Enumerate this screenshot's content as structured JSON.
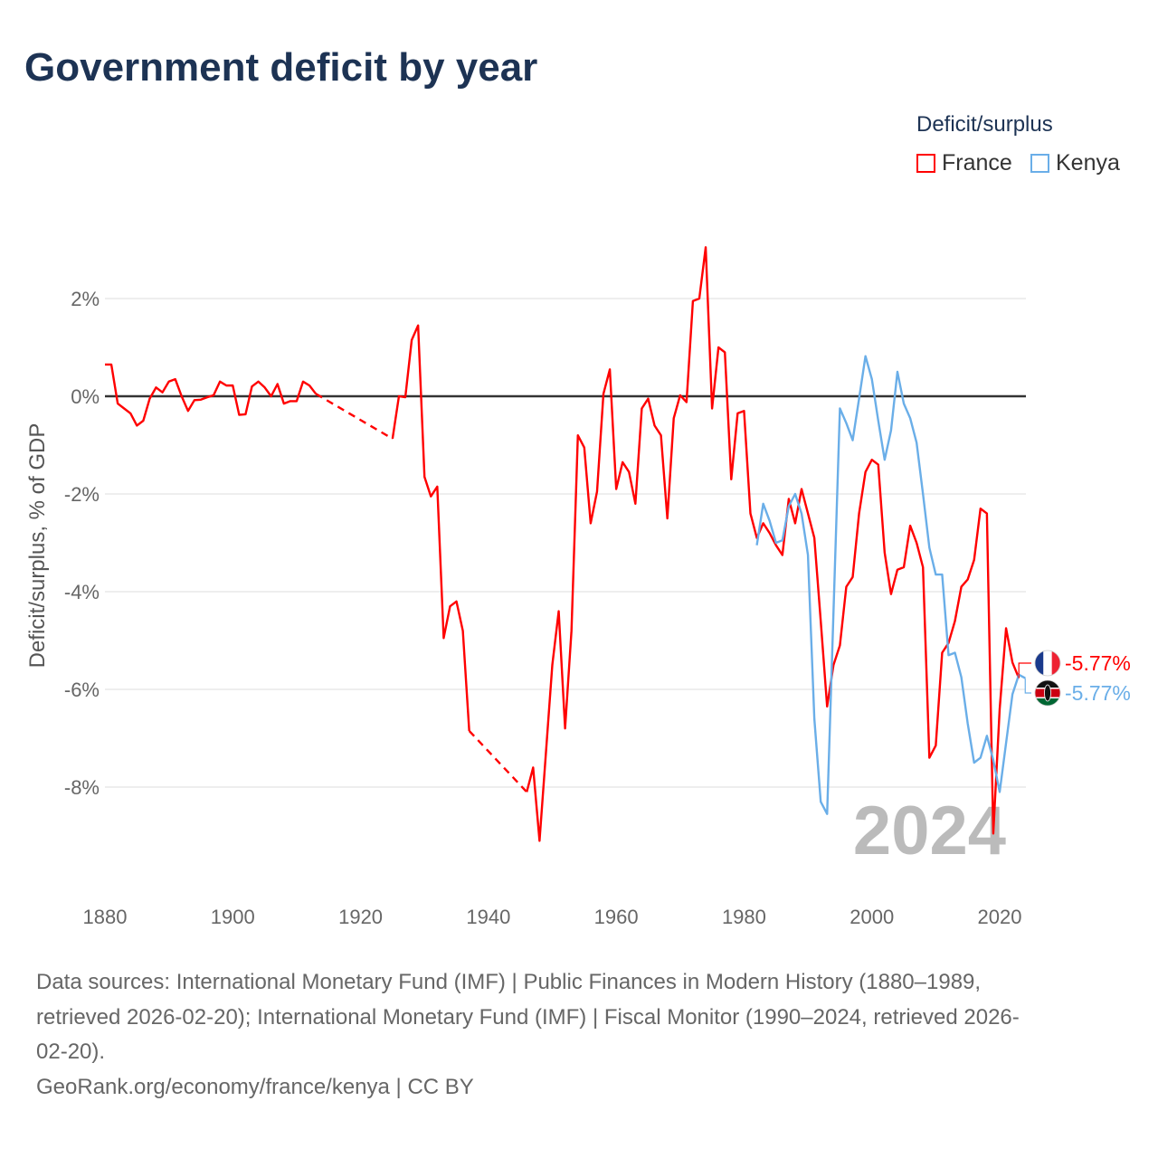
{
  "chart_data": {
    "type": "line",
    "title": "Government deficit by year",
    "ylabel": "Deficit/surplus, % of GDP",
    "xlabel": "",
    "legend_title": "Deficit/surplus",
    "legend_position": "top-right",
    "xlim": [
      1880,
      2024
    ],
    "ylim": [
      -10,
      3.3
    ],
    "xticks": [
      1880,
      1900,
      1920,
      1940,
      1960,
      1980,
      2000,
      2020
    ],
    "xtick_labels": [
      "1880",
      "1900",
      "1920",
      "1940",
      "1960",
      "1980",
      "2000",
      "2020"
    ],
    "yticks": [
      2,
      0,
      -2,
      -4,
      -6,
      -8
    ],
    "ytick_labels": [
      "2%",
      "0%",
      "-2%",
      "-4%",
      "-6%",
      "-8%"
    ],
    "grid": true,
    "year_watermark": "2024",
    "series": [
      {
        "name": "France",
        "color": "#ff0000",
        "end_label": "-5.77%",
        "start_year": 1880,
        "values": [
          0.65,
          0.65,
          -0.15,
          -0.25,
          -0.35,
          -0.6,
          -0.5,
          -0.05,
          0.18,
          0.08,
          0.3,
          0.35,
          0,
          -0.3,
          -0.08,
          -0.07,
          -0.02,
          0.02,
          0.3,
          0.22,
          0.22,
          -0.38,
          -0.37,
          0.2,
          0.3,
          0.18,
          0,
          0.25,
          -0.15,
          -0.1,
          -0.1,
          0.3,
          0.22,
          0.05,
          null,
          null,
          null,
          null,
          null,
          null,
          null,
          null,
          null,
          null,
          null,
          -0.87,
          0,
          -0.02,
          1.15,
          1.45,
          -1.65,
          -2.05,
          -1.85,
          -4.95,
          -4.3,
          -4.2,
          -4.8,
          -6.85,
          null,
          null,
          null,
          null,
          null,
          null,
          null,
          null,
          -8.1,
          -7.6,
          -9.1,
          -7.3,
          -5.5,
          -4.4,
          -6.8,
          -4.8,
          -0.8,
          -1.05,
          -2.6,
          -1.95,
          0.05,
          0.55,
          -1.9,
          -1.35,
          -1.55,
          -2.2,
          -0.25,
          -0.05,
          -0.6,
          -0.8,
          -2.5,
          -0.45,
          0.02,
          -0.12,
          1.95,
          2.0,
          3.05,
          -0.25,
          1.0,
          0.9,
          -1.7,
          -0.35,
          -0.3,
          -2.4,
          -2.9,
          -2.6,
          -2.8,
          -3.05,
          -3.25,
          -2.1,
          -2.6,
          -1.9,
          -2.4,
          -2.9,
          -4.6,
          -6.35,
          -5.5,
          -5.1,
          -3.9,
          -3.7,
          -2.4,
          -1.55,
          -1.3,
          -1.4,
          -3.2,
          -4.05,
          -3.55,
          -3.5,
          -2.65,
          -3.0,
          -3.5,
          -7.4,
          -7.15,
          -5.25,
          -5.05,
          -4.6,
          -3.9,
          -3.75,
          -3.35,
          -2.3,
          -2.4,
          -8.95,
          -6.4,
          -4.75,
          -5.45,
          -5.77
        ]
      },
      {
        "name": "Kenya",
        "color": "#6aaee8",
        "end_label": "-5.77%",
        "start_year": 1982,
        "values": [
          -3.05,
          -2.2,
          -2.55,
          -3.0,
          -2.95,
          -2.25,
          -2.0,
          -2.4,
          -3.25,
          -6.6,
          -8.3,
          -8.55,
          -4.4,
          -0.25,
          -0.55,
          -0.9,
          -0.05,
          0.82,
          0.35,
          -0.5,
          -1.3,
          -0.7,
          0.5,
          -0.15,
          -0.45,
          -0.95,
          -2.0,
          -3.1,
          -3.65,
          -3.65,
          -5.3,
          -5.25,
          -5.75,
          -6.7,
          -7.5,
          -7.4,
          -6.95,
          -7.45,
          -8.1,
          -7.1,
          -6.1,
          -5.7,
          -5.77
        ]
      }
    ]
  },
  "footer": {
    "sources_line1": "Data sources: International Monetary Fund (IMF) | Public Finances in Modern History (1880–1989,",
    "sources_line2": "retrieved 2026-02-20); International Monetary Fund (IMF) | Fiscal Monitor (1990–2024, retrieved 2026-",
    "sources_line3": "02-20).",
    "credit": "GeoRank.org/economy/france/kenya | CC BY"
  }
}
